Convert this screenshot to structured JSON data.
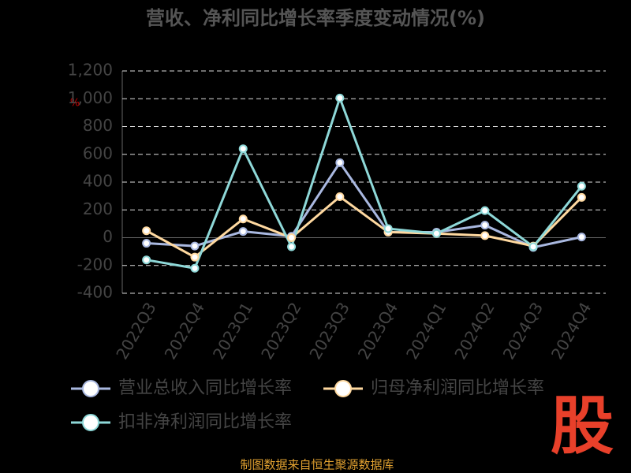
{
  "chart_data": {
    "type": "line",
    "title": "营收、净利同比增长率季度变动情况(%)",
    "unit_label": "%",
    "categories": [
      "2022Q3",
      "2022Q4",
      "2023Q1",
      "2023Q2",
      "2023Q3",
      "2023Q4",
      "2024Q1",
      "2024Q2",
      "2024Q3",
      "2024Q4"
    ],
    "series": [
      {
        "name": "营业总收入同比增长率",
        "color": "#a9b8e0",
        "values": [
          -40,
          -60,
          45,
          10,
          540,
          40,
          40,
          90,
          -70,
          5
        ]
      },
      {
        "name": "归母净利润同比增长率",
        "color": "#ffd9a0",
        "values": [
          50,
          -140,
          135,
          0,
          295,
          40,
          30,
          15,
          -60,
          290
        ]
      },
      {
        "name": "扣非净利润同比增长率",
        "color": "#8ed8d8",
        "values": [
          -160,
          -220,
          640,
          -65,
          1005,
          65,
          30,
          195,
          -65,
          370
        ]
      }
    ],
    "ylim": [
      -400,
      1200
    ],
    "yticks": [
      -400,
      -200,
      0,
      200,
      400,
      600,
      800,
      {
        "value": 1000,
        "label": "1,000"
      },
      {
        "value": 1200,
        "label": "1,200"
      }
    ],
    "grid": true,
    "legend": "bottom",
    "source": "制图数据来自恒生聚源数据库",
    "watermark": "股"
  }
}
